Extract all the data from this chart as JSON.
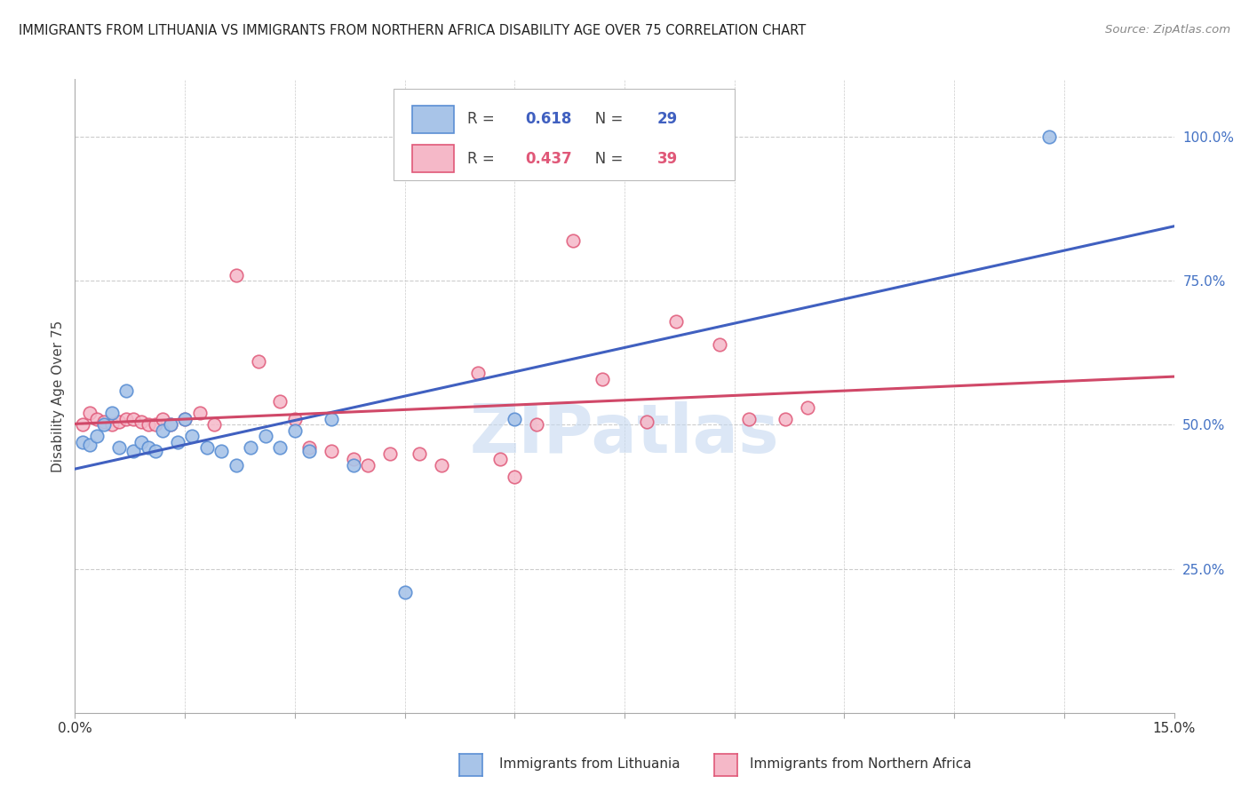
{
  "title": "IMMIGRANTS FROM LITHUANIA VS IMMIGRANTS FROM NORTHERN AFRICA DISABILITY AGE OVER 75 CORRELATION CHART",
  "source": "Source: ZipAtlas.com",
  "ylabel": "Disability Age Over 75",
  "xlim": [
    0.0,
    0.15
  ],
  "ylim": [
    0.0,
    1.1
  ],
  "ytick_labels_right": [
    "100.0%",
    "75.0%",
    "50.0%",
    "25.0%"
  ],
  "ytick_positions_right": [
    1.0,
    0.75,
    0.5,
    0.25
  ],
  "R_blue": 0.618,
  "N_blue": 29,
  "R_pink": 0.437,
  "N_pink": 39,
  "blue_scatter_color": "#A8C4E8",
  "blue_edge_color": "#5B8FD4",
  "pink_scatter_color": "#F5B8C8",
  "pink_edge_color": "#E05878",
  "blue_line_color": "#4060C0",
  "pink_line_color": "#D04868",
  "legend_label_blue": "Immigrants from Lithuania",
  "legend_label_pink": "Immigrants from Northern Africa",
  "blue_scatter_x": [
    0.001,
    0.002,
    0.003,
    0.004,
    0.005,
    0.006,
    0.007,
    0.008,
    0.009,
    0.01,
    0.011,
    0.012,
    0.013,
    0.014,
    0.015,
    0.016,
    0.018,
    0.02,
    0.022,
    0.024,
    0.026,
    0.028,
    0.03,
    0.032,
    0.035,
    0.038,
    0.045,
    0.06,
    0.133
  ],
  "blue_scatter_y": [
    0.47,
    0.465,
    0.48,
    0.5,
    0.52,
    0.46,
    0.56,
    0.455,
    0.47,
    0.46,
    0.455,
    0.49,
    0.5,
    0.47,
    0.51,
    0.48,
    0.46,
    0.455,
    0.43,
    0.46,
    0.48,
    0.46,
    0.49,
    0.455,
    0.51,
    0.43,
    0.21,
    0.51,
    1.0
  ],
  "pink_scatter_x": [
    0.001,
    0.002,
    0.003,
    0.004,
    0.005,
    0.006,
    0.007,
    0.008,
    0.009,
    0.01,
    0.011,
    0.012,
    0.013,
    0.015,
    0.017,
    0.019,
    0.022,
    0.025,
    0.028,
    0.03,
    0.032,
    0.035,
    0.038,
    0.04,
    0.043,
    0.047,
    0.05,
    0.055,
    0.058,
    0.06,
    0.063,
    0.068,
    0.072,
    0.078,
    0.082,
    0.088,
    0.092,
    0.097,
    0.1
  ],
  "pink_scatter_y": [
    0.5,
    0.52,
    0.51,
    0.505,
    0.5,
    0.505,
    0.51,
    0.51,
    0.505,
    0.5,
    0.5,
    0.51,
    0.5,
    0.51,
    0.52,
    0.5,
    0.76,
    0.61,
    0.54,
    0.51,
    0.46,
    0.455,
    0.44,
    0.43,
    0.45,
    0.45,
    0.43,
    0.59,
    0.44,
    0.41,
    0.5,
    0.82,
    0.58,
    0.505,
    0.68,
    0.64,
    0.51,
    0.51,
    0.53
  ],
  "watermark_text": "ZIPatlas",
  "watermark_color": "#C5D8F0",
  "background_color": "#FFFFFF",
  "grid_color": "#CCCCCC",
  "grid_style": "--"
}
